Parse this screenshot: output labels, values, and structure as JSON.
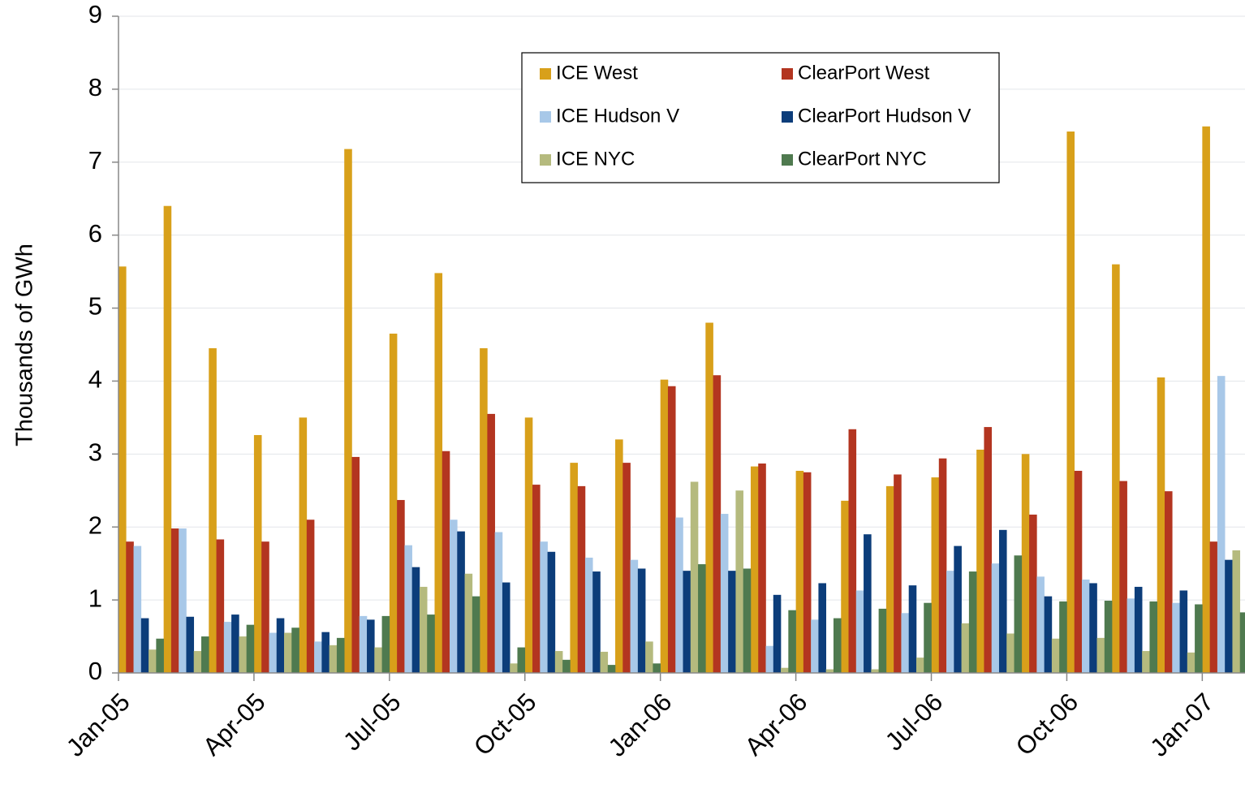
{
  "chart_data": {
    "type": "bar",
    "y_label": "Thousands of GWh",
    "categories": [
      "Jan-05",
      null,
      null,
      "Apr-05",
      null,
      null,
      "Jul-05",
      null,
      null,
      "Oct-05",
      null,
      null,
      "Jan-06",
      null,
      null,
      "Apr-06",
      null,
      null,
      "Jul-06",
      null,
      null,
      "Oct-06",
      null,
      null,
      "Jan-07"
    ],
    "series": [
      {
        "name": "ICE West",
        "color": "#d8a01a",
        "values": [
          5.57,
          6.4,
          4.45,
          3.26,
          3.5,
          7.18,
          4.65,
          5.48,
          4.45,
          3.5,
          2.88,
          3.2,
          4.02,
          4.8,
          2.83,
          2.77,
          2.36,
          2.56,
          2.68,
          3.06,
          3.0,
          7.42,
          5.6,
          4.05,
          7.49
        ]
      },
      {
        "name": "ClearPort West",
        "color": "#b33520",
        "values": [
          1.8,
          1.98,
          1.83,
          1.8,
          2.1,
          2.96,
          2.37,
          3.04,
          3.55,
          2.58,
          2.56,
          2.88,
          3.93,
          4.08,
          2.87,
          2.75,
          3.34,
          2.72,
          2.94,
          3.37,
          2.17,
          2.77,
          2.63,
          2.49,
          1.8
        ]
      },
      {
        "name": "ICE Hudson V",
        "color": "#a8c8e8",
        "values": [
          1.74,
          1.98,
          0.7,
          0.55,
          0.43,
          0.78,
          1.75,
          2.1,
          1.93,
          1.8,
          1.58,
          1.55,
          2.13,
          2.18,
          0.37,
          0.73,
          1.13,
          0.82,
          1.4,
          1.5,
          1.32,
          1.28,
          1.02,
          0.96,
          4.07
        ]
      },
      {
        "name": "ClearPort Hudson V",
        "color": "#0c3d7a",
        "values": [
          0.75,
          0.77,
          0.8,
          0.75,
          0.56,
          0.73,
          1.45,
          1.94,
          1.24,
          1.66,
          1.39,
          1.43,
          1.4,
          1.4,
          1.07,
          1.23,
          1.9,
          1.2,
          1.74,
          1.96,
          1.05,
          1.23,
          1.18,
          1.13,
          1.55
        ]
      },
      {
        "name": "ICE NYC",
        "color": "#b5ba7e",
        "values": [
          0.32,
          0.3,
          0.5,
          0.55,
          0.38,
          0.35,
          1.18,
          1.36,
          0.13,
          0.3,
          0.29,
          0.43,
          2.62,
          2.5,
          0.07,
          0.05,
          0.05,
          0.21,
          0.68,
          0.54,
          0.47,
          0.48,
          0.3,
          0.28,
          1.68
        ]
      },
      {
        "name": "ClearPort NYC",
        "color": "#4f7a4f",
        "values": [
          0.47,
          0.5,
          0.66,
          0.62,
          0.48,
          0.78,
          0.8,
          1.05,
          0.35,
          0.18,
          0.11,
          0.13,
          1.49,
          1.43,
          0.86,
          0.75,
          0.88,
          0.96,
          1.39,
          1.61,
          0.98,
          0.99,
          0.98,
          0.94,
          0.83
        ]
      }
    ],
    "ylim": [
      0,
      9
    ],
    "yticks": [
      0,
      1,
      2,
      3,
      4,
      5,
      6,
      7,
      8,
      9
    ],
    "grid": true,
    "legend": "top"
  }
}
